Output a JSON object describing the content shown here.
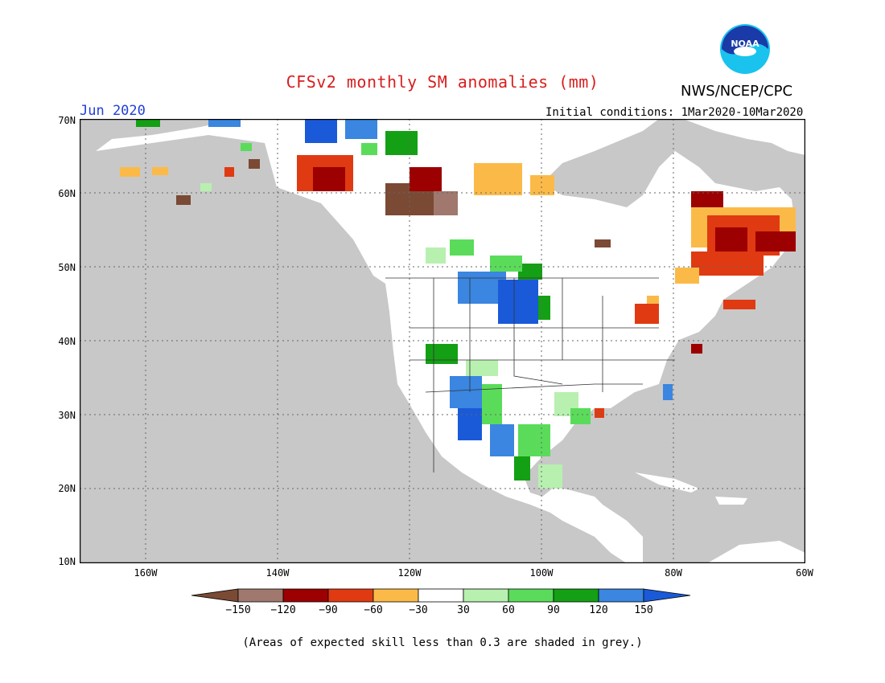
{
  "header": {
    "title": "CFSv2 monthly SM anomalies (mm)",
    "agency": "NWS/NCEP/CPC",
    "logo_text": "NOAA",
    "target_month": "Jun 2020",
    "initial_conditions": "Initial conditions: 1Mar2020-10Mar2020"
  },
  "map": {
    "lat_labels": [
      "70N",
      "60N",
      "50N",
      "40N",
      "30N",
      "20N",
      "10N"
    ],
    "lon_labels": [
      "160W",
      "140W",
      "120W",
      "100W",
      "80W",
      "60W"
    ],
    "no_data_color": "#c8c8c8"
  },
  "legend": {
    "ticks": [
      "−150",
      "−120",
      "−90",
      "−60",
      "−30",
      "30",
      "60",
      "90",
      "120",
      "150"
    ],
    "colors": [
      "#7a4a34",
      "#a0786e",
      "#9c0000",
      "#e03a12",
      "#fbba48",
      "#ffffff",
      "#b8f0b0",
      "#5adc5a",
      "#14a014",
      "#3a86e0",
      "#1a5ad8"
    ]
  },
  "footnote": "(Areas of expected skill less than 0.3 are shaded in grey.)"
}
